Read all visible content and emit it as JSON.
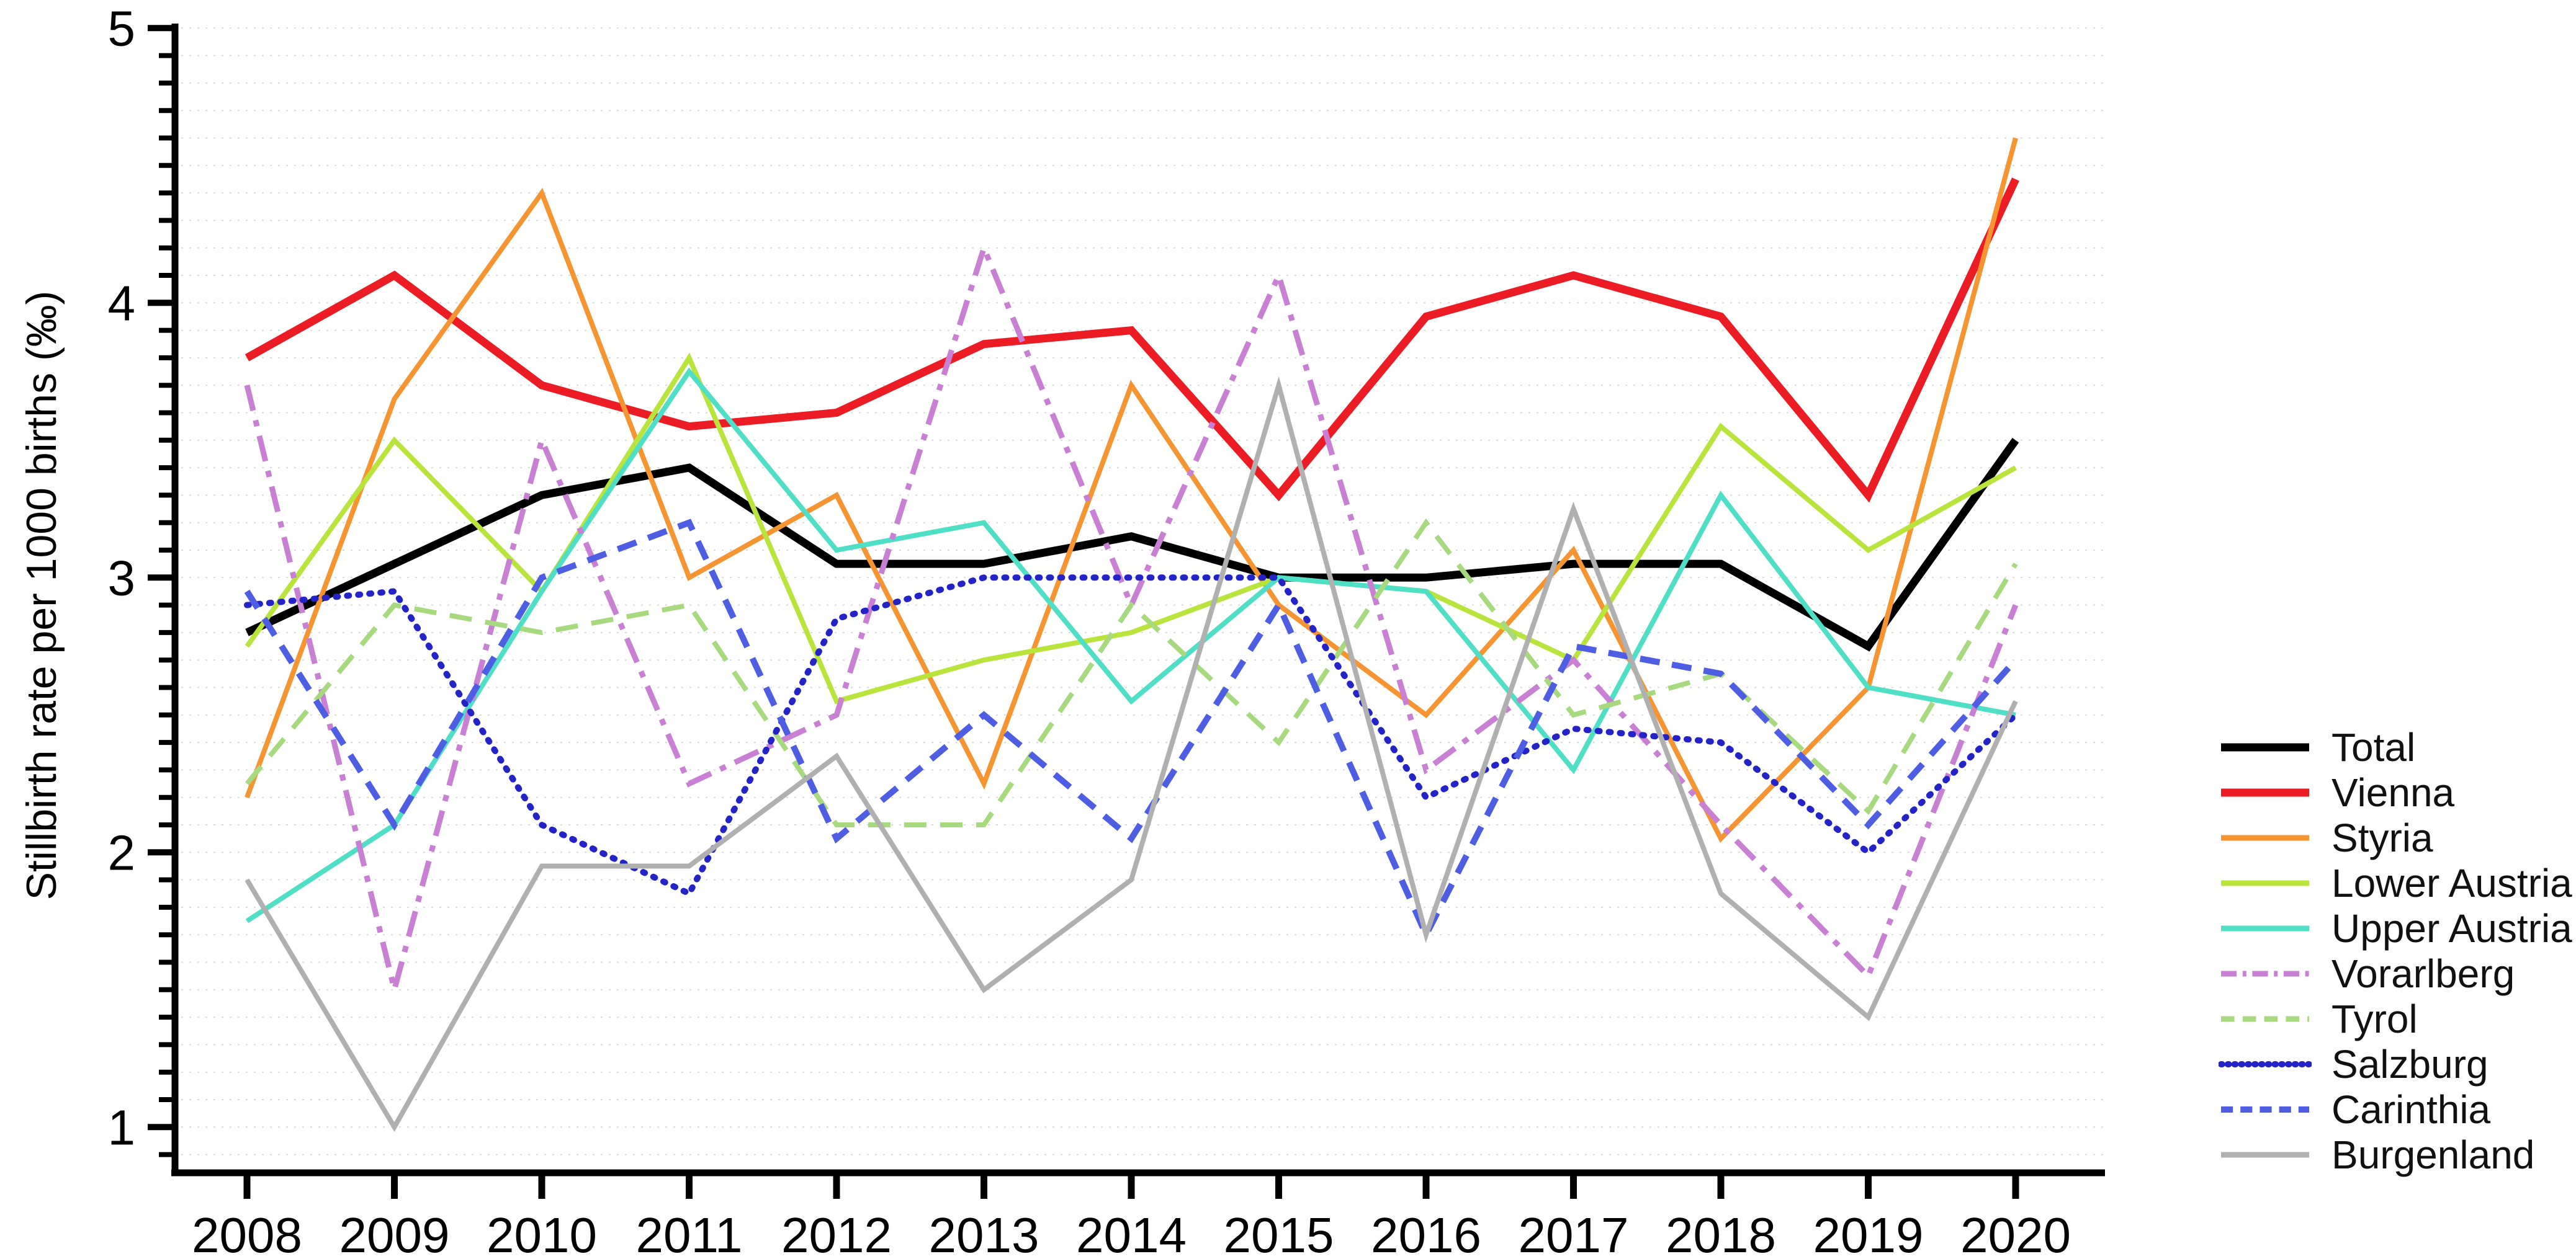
{
  "figure": {
    "ylabel": "Stillbirth rate per 1000 births (‰)"
  },
  "chart_data": {
    "type": "line",
    "title": "",
    "xlabel": "",
    "ylabel": "Stillbirth rate per 1000 births (‰)",
    "x": [
      2008,
      2009,
      2010,
      2011,
      2012,
      2013,
      2014,
      2015,
      2016,
      2017,
      2018,
      2019,
      2020
    ],
    "x_tick_labels": [
      "2008",
      "2009",
      "2010",
      "2011",
      "2012",
      "2013",
      "2014",
      "2015",
      "2016",
      "2017",
      "2018",
      "2019",
      "2020"
    ],
    "y_ticks": [
      1,
      2,
      3,
      4,
      5
    ],
    "y_tick_labels": [
      "1",
      "2",
      "3",
      "4",
      "5"
    ],
    "ylim": [
      0.8,
      5.0
    ],
    "grid": {
      "orientation": "horizontal",
      "step": 0.1,
      "style": "dotted",
      "color": "#d9d9d9"
    },
    "legend_position": "right",
    "series": [
      {
        "name": "Total",
        "color": "#000000",
        "width": 13,
        "dash": [],
        "cap": "butt",
        "values": [
          2.8,
          3.05,
          3.3,
          3.4,
          3.05,
          3.05,
          3.15,
          3.0,
          3.0,
          3.05,
          3.05,
          2.75,
          3.5
        ]
      },
      {
        "name": "Vienna",
        "color": "#ec1c24",
        "width": 13,
        "dash": [],
        "cap": "butt",
        "values": [
          3.8,
          4.1,
          3.7,
          3.55,
          3.6,
          3.85,
          3.9,
          3.3,
          3.95,
          4.1,
          3.95,
          3.3,
          4.45
        ]
      },
      {
        "name": "Styria",
        "color": "#f59431",
        "width": 8,
        "dash": [],
        "cap": "butt",
        "values": [
          2.2,
          3.65,
          4.4,
          3.0,
          3.3,
          2.25,
          3.7,
          2.9,
          2.5,
          3.1,
          2.05,
          2.6,
          4.6
        ]
      },
      {
        "name": "Lower Austria",
        "color": "#b9e43c",
        "width": 8,
        "dash": [],
        "cap": "butt",
        "values": [
          2.75,
          3.5,
          2.95,
          3.8,
          2.55,
          2.7,
          2.8,
          3.0,
          2.95,
          2.7,
          3.55,
          3.1,
          3.4
        ]
      },
      {
        "name": "Upper Austria",
        "color": "#4fdfc6",
        "width": 8,
        "dash": [],
        "cap": "butt",
        "values": [
          1.75,
          2.1,
          2.95,
          3.75,
          3.1,
          3.2,
          2.55,
          3.0,
          2.95,
          2.3,
          3.3,
          2.6,
          2.5
        ]
      },
      {
        "name": "Vorarlberg",
        "color": "#c97fd3",
        "width": 9,
        "dash": [
          42,
          16,
          10,
          16
        ],
        "cap": "butt",
        "values": [
          3.7,
          1.5,
          3.5,
          2.25,
          2.5,
          4.2,
          2.9,
          4.1,
          2.3,
          2.7,
          2.1,
          1.55,
          2.9
        ]
      },
      {
        "name": "Tyrol",
        "color": "#a7d97e",
        "width": 8,
        "dash": [
          36,
          22
        ],
        "cap": "butt",
        "values": [
          2.25,
          2.9,
          2.8,
          2.9,
          2.1,
          2.1,
          2.9,
          2.4,
          3.2,
          2.5,
          2.65,
          2.15,
          3.05
        ]
      },
      {
        "name": "Salzburg",
        "color": "#2323c8",
        "width": 10,
        "dash": [
          3,
          15
        ],
        "cap": "round",
        "values": [
          2.9,
          2.95,
          2.1,
          1.85,
          2.85,
          3.0,
          3.0,
          3.0,
          2.2,
          2.45,
          2.4,
          2.0,
          2.5
        ]
      },
      {
        "name": "Carinthia",
        "color": "#4e5ee3",
        "width": 10,
        "dash": [
          32,
          20
        ],
        "cap": "butt",
        "values": [
          2.95,
          2.1,
          3.0,
          3.2,
          2.05,
          2.5,
          2.05,
          2.9,
          1.7,
          2.75,
          2.65,
          2.1,
          2.7
        ]
      },
      {
        "name": "Burgenland",
        "color": "#b0b0b0",
        "width": 8,
        "dash": [],
        "cap": "butt",
        "values": [
          1.9,
          1.0,
          1.95,
          1.95,
          2.35,
          1.5,
          1.9,
          3.7,
          1.7,
          3.25,
          1.85,
          1.4,
          2.55
        ]
      }
    ]
  }
}
